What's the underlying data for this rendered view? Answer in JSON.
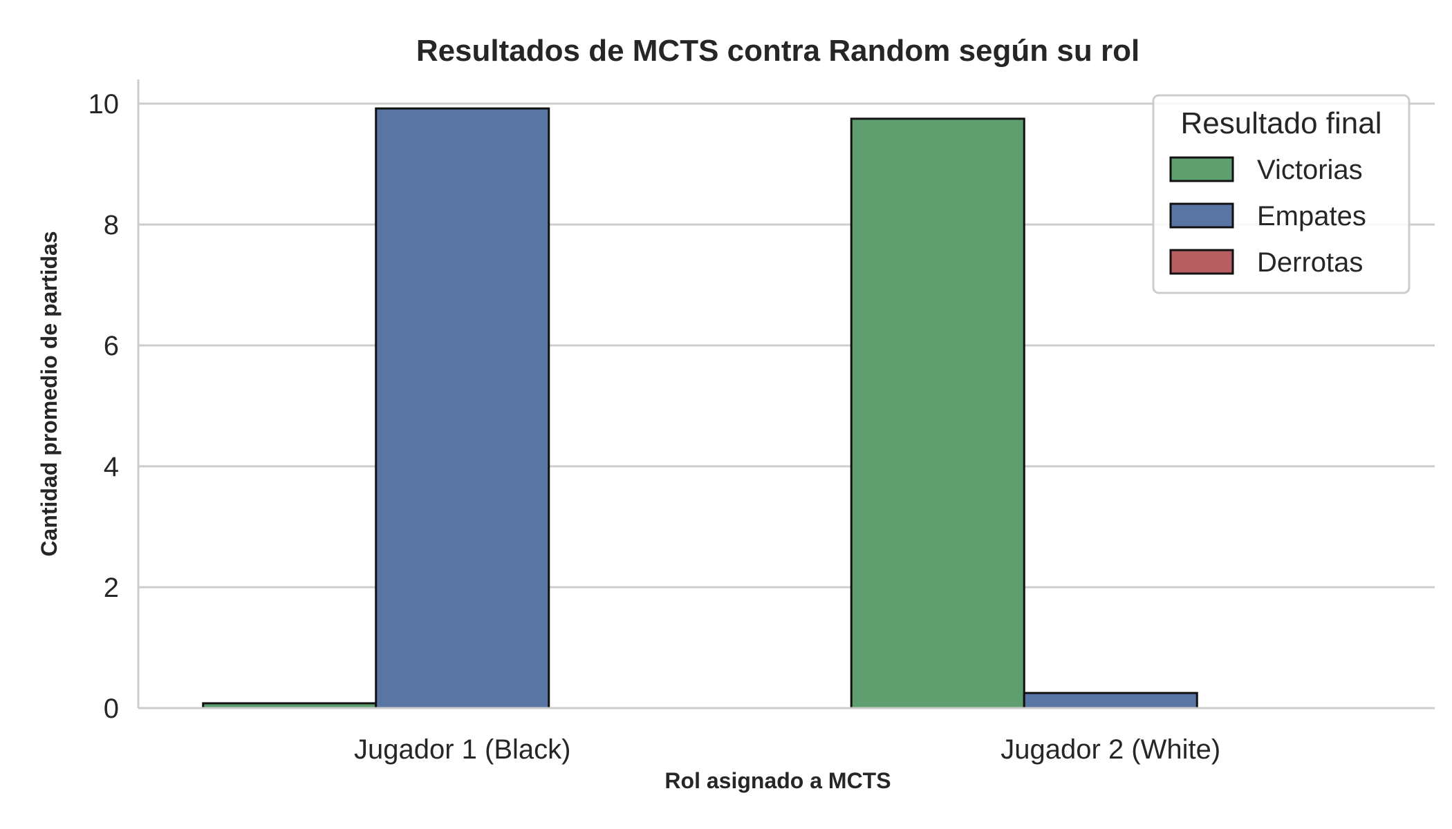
{
  "chart_data": {
    "type": "bar",
    "title": "Resultados de MCTS contra Random según su rol",
    "xlabel": "Rol asignado a MCTS",
    "ylabel": "Cantidad promedio de partidas",
    "categories": [
      "Jugador 1 (Black)",
      "Jugador 2 (White)"
    ],
    "series": [
      {
        "name": "Victorias",
        "values": [
          0.08,
          9.75
        ],
        "color": "#5f9e6e"
      },
      {
        "name": "Empates",
        "values": [
          9.92,
          0.25
        ],
        "color": "#5975a4"
      },
      {
        "name": "Derrotas",
        "values": [
          0,
          0
        ],
        "color": "#b55d60"
      }
    ],
    "ylim": [
      0,
      10.4
    ],
    "yticks": [
      "0",
      "2",
      "4",
      "6",
      "8",
      "10"
    ],
    "legend": {
      "title": "Resultado final",
      "position": "top-right"
    },
    "grid": "y"
  }
}
